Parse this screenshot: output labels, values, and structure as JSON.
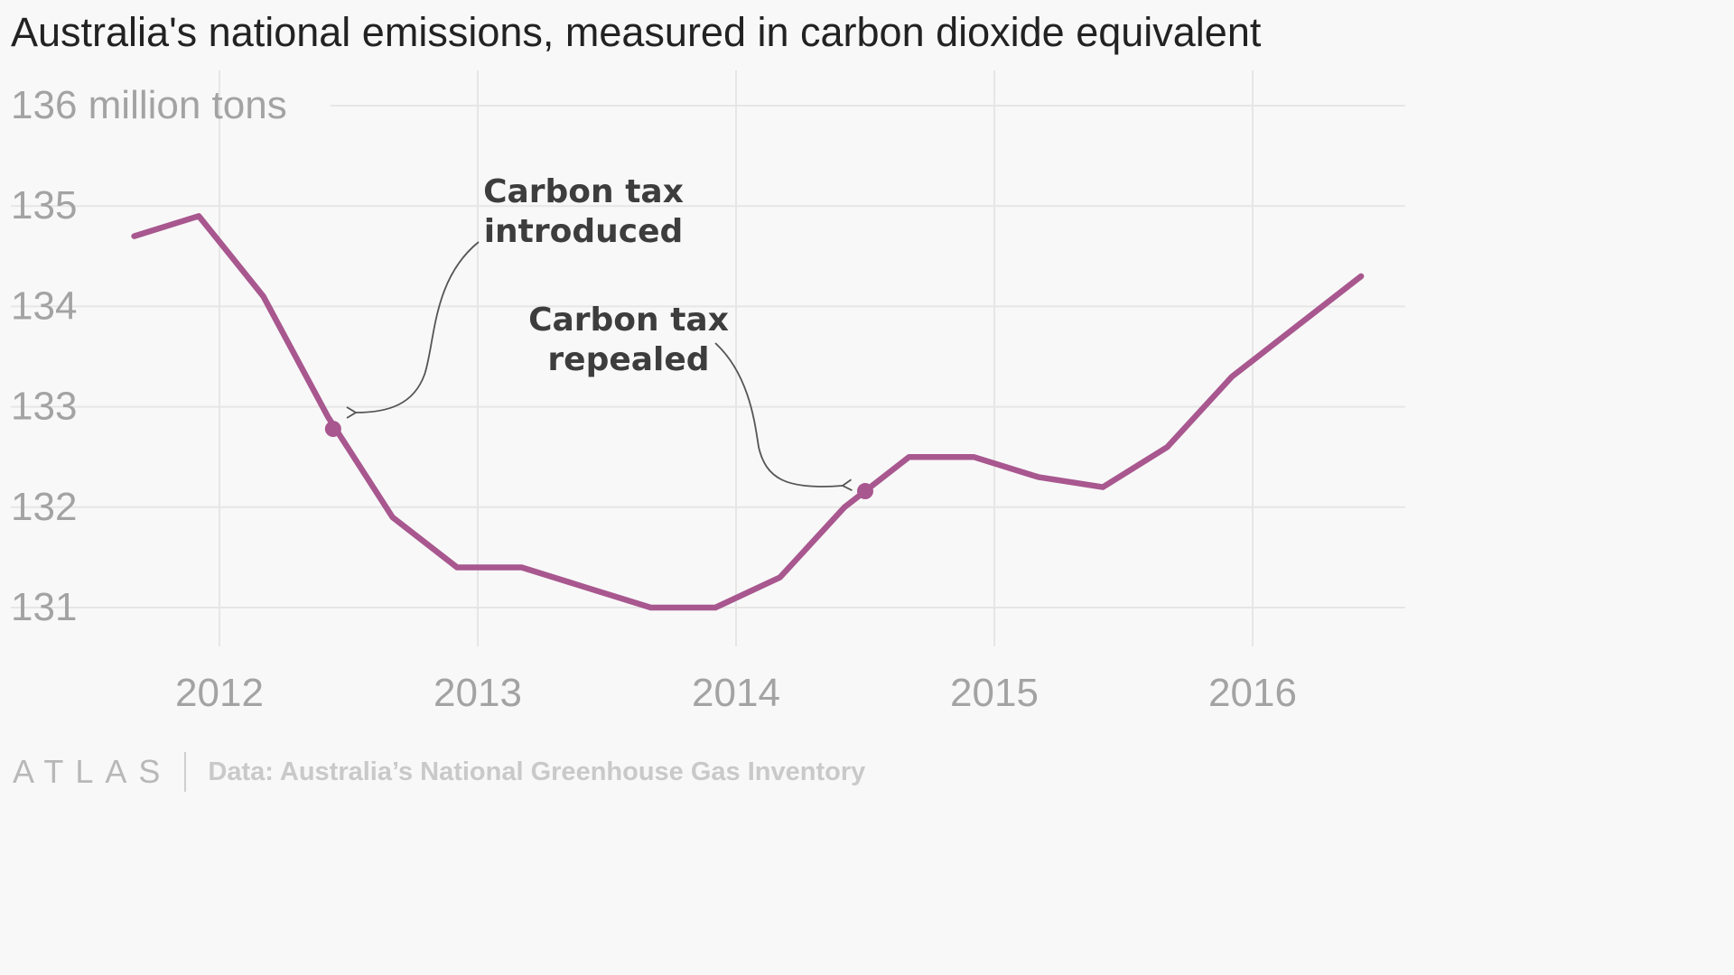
{
  "chart_data": {
    "type": "line",
    "title": "Australia's national emissions, measured in carbon dioxide equivalent",
    "ylabel": "",
    "xlabel": "",
    "y_unit_label": "136 million tons",
    "ylim": [
      130.6,
      136.2
    ],
    "xlim": [
      2011.55,
      2016.6
    ],
    "y_ticks": [
      {
        "value": 136,
        "label": "136 million tons"
      },
      {
        "value": 135,
        "label": "135"
      },
      {
        "value": 134,
        "label": "134"
      },
      {
        "value": 133,
        "label": "133"
      },
      {
        "value": 132,
        "label": "132"
      },
      {
        "value": 131,
        "label": "131"
      }
    ],
    "x_ticks": [
      {
        "value": 2012,
        "label": "2012"
      },
      {
        "value": 2013,
        "label": "2013"
      },
      {
        "value": 2014,
        "label": "2014"
      },
      {
        "value": 2015,
        "label": "2015"
      },
      {
        "value": 2016,
        "label": "2016"
      }
    ],
    "grid": true,
    "series": [
      {
        "color": "#a8578f",
        "x": [
          2011.67,
          2011.92,
          2012.17,
          2012.42,
          2012.67,
          2012.92,
          2013.17,
          2013.42,
          2013.67,
          2013.92,
          2014.17,
          2014.42,
          2014.67,
          2014.92,
          2015.17,
          2015.42,
          2015.67,
          2015.92,
          2016.17,
          2016.42
        ],
        "y": [
          134.7,
          134.9,
          134.1,
          132.9,
          131.9,
          131.4,
          131.4,
          131.2,
          131.0,
          131.0,
          131.3,
          132.0,
          132.5,
          132.5,
          132.3,
          132.2,
          132.6,
          133.3,
          133.8,
          134.3
        ]
      }
    ],
    "markers": [
      {
        "x": 2012.44,
        "y": 132.78
      },
      {
        "x": 2014.5,
        "y": 132.16
      }
    ],
    "annotations": [
      {
        "lines": [
          "Carbon tax",
          "introduced"
        ]
      },
      {
        "lines": [
          "Carbon tax",
          "repealed"
        ]
      }
    ]
  },
  "footer": {
    "logo": "ATLAS",
    "source": "Data: Australia’s National Greenhouse Gas Inventory"
  }
}
